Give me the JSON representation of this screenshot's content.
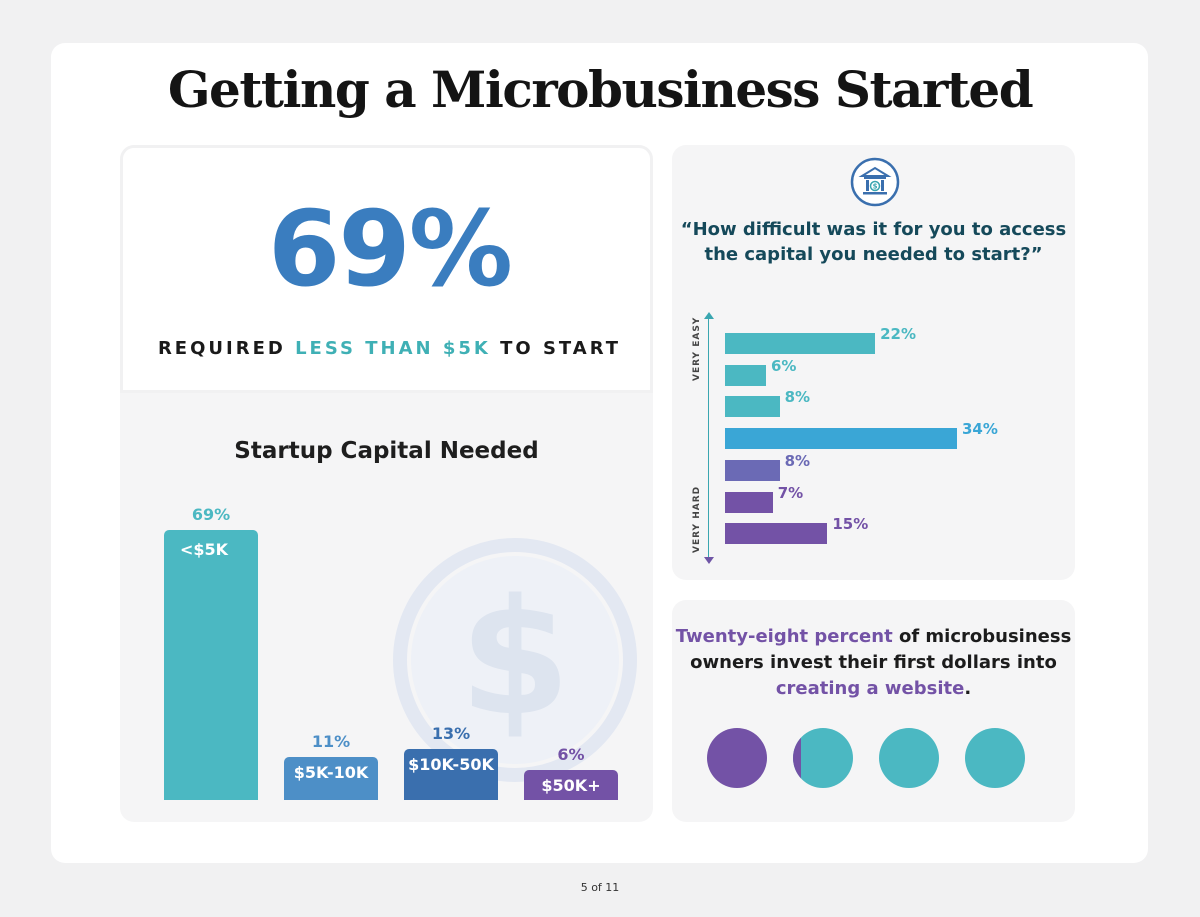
{
  "title": "Getting a Microbusiness Started",
  "headline": {
    "value": "69%",
    "text_before": "REQUIRED ",
    "text_highlight": "LESS THAN $5K",
    "text_after": " TO START"
  },
  "colors": {
    "teal": "#4bb8c2",
    "blue_light": "#4d8fc7",
    "blue": "#3a6fae",
    "purple": "#7352a6",
    "headline_blue": "#3a7dbf"
  },
  "chart_data": [
    {
      "type": "bar",
      "title": "Startup Capital Needed",
      "categories": [
        "<$5K",
        "$5K-10K",
        "$10K-50K",
        "$50K+"
      ],
      "values": [
        69,
        11,
        13,
        6
      ],
      "value_labels": [
        "69%",
        "11%",
        "13%",
        "6%"
      ],
      "colors": [
        "#4bb8c2",
        "#4d8fc7",
        "#3a6fae",
        "#7352a6"
      ],
      "ylim": [
        0,
        69
      ]
    },
    {
      "type": "bar",
      "orientation": "horizontal",
      "title": "“How difficult was it for you to access the capital you needed to start?”",
      "axis_top_label": "VERY EASY",
      "axis_bottom_label": "VERY HARD",
      "values": [
        22,
        6,
        8,
        34,
        8,
        7,
        15
      ],
      "value_labels": [
        "22%",
        "6%",
        "8%",
        "34%",
        "8%",
        "7%",
        "15%"
      ],
      "colors": [
        "#4bb8c2",
        "#4bb8c2",
        "#4bb8c2",
        "#3aa6d6",
        "#6b6ab5",
        "#7352a6",
        "#7352a6"
      ],
      "xlim": [
        0,
        34
      ]
    }
  ],
  "website_fact": {
    "highlight1": "Twenty-eight percent",
    "text1": " of microbusiness owners invest their first dollars into ",
    "highlight2": "creating a website",
    "text2": ".",
    "fraction": 0.28
  },
  "page_indicator": "5 of 11"
}
